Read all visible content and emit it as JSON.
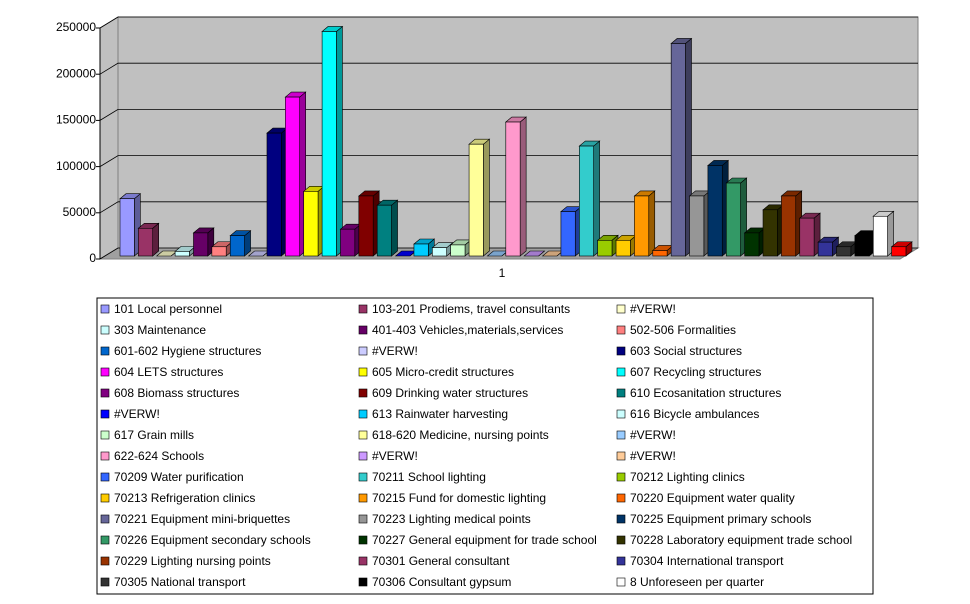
{
  "chart_data": {
    "type": "bar3d",
    "categories": [
      "1"
    ],
    "ylim": [
      0,
      250000
    ],
    "yticks": [
      0,
      50000,
      100000,
      150000,
      200000,
      250000
    ],
    "grid": true,
    "legend": "bottom",
    "series": [
      {
        "name": "101 Local personnel",
        "color": "#9999ff",
        "values": [
          62000
        ]
      },
      {
        "name": "103-201 Prodiems, travel consultants",
        "color": "#993366",
        "values": [
          30000
        ]
      },
      {
        "name": "#VERW!",
        "color": "#ffffcc",
        "values": [
          0
        ]
      },
      {
        "name": "303 Maintenance",
        "color": "#ccffff",
        "values": [
          5000
        ]
      },
      {
        "name": "401-403 Vehicles,materials,services",
        "color": "#660066",
        "values": [
          25000
        ]
      },
      {
        "name": "502-506 Formalities",
        "color": "#ff8080",
        "values": [
          10000
        ]
      },
      {
        "name": "601-602 Hygiene structures",
        "color": "#0066cc",
        "values": [
          22000
        ]
      },
      {
        "name": "#VERW!",
        "color": "#ccccff",
        "values": [
          0
        ]
      },
      {
        "name": "603 Social structures",
        "color": "#000080",
        "values": [
          133000
        ]
      },
      {
        "name": "604 LETS structures",
        "color": "#ff00ff",
        "values": [
          172000
        ]
      },
      {
        "name": "605 Micro-credit structures",
        "color": "#ffff00",
        "values": [
          70000
        ]
      },
      {
        "name": "607 Recycling structures",
        "color": "#00ffff",
        "values": [
          243000
        ]
      },
      {
        "name": "608 Biomass structures",
        "color": "#800080",
        "values": [
          29000
        ]
      },
      {
        "name": "609 Drinking water structures",
        "color": "#800000",
        "values": [
          65000
        ]
      },
      {
        "name": "610 Ecosanitation structures",
        "color": "#008080",
        "values": [
          55000
        ]
      },
      {
        "name": "#VERW!",
        "color": "#0000ff",
        "values": [
          0
        ]
      },
      {
        "name": "613 Rainwater harvesting",
        "color": "#00ccff",
        "values": [
          13000
        ]
      },
      {
        "name": "616 Bicycle ambulances",
        "color": "#ccffff",
        "values": [
          9000
        ]
      },
      {
        "name": "617 Grain mills",
        "color": "#ccffcc",
        "values": [
          12000
        ]
      },
      {
        "name": "618-620 Medicine, nursing points",
        "color": "#ffff99",
        "values": [
          121000
        ]
      },
      {
        "name": "#VERW!",
        "color": "#99ccff",
        "values": [
          0
        ]
      },
      {
        "name": "622-624 Schools",
        "color": "#ff99cc",
        "values": [
          145000
        ]
      },
      {
        "name": "#VERW!",
        "color": "#cc99ff",
        "values": [
          0
        ]
      },
      {
        "name": "#VERW!",
        "color": "#ffcc99",
        "values": [
          0
        ]
      },
      {
        "name": "70209 Water purification",
        "color": "#3366ff",
        "values": [
          48000
        ]
      },
      {
        "name": "70211 School lighting",
        "color": "#33cccc",
        "values": [
          119000
        ]
      },
      {
        "name": "70212 Lighting clinics",
        "color": "#99cc00",
        "values": [
          17000
        ]
      },
      {
        "name": "70213 Refrigeration clinics",
        "color": "#ffcc00",
        "values": [
          17000
        ]
      },
      {
        "name": "70215 Fund for domestic lighting",
        "color": "#ff9900",
        "values": [
          65000
        ]
      },
      {
        "name": "70220 Equipment water quality",
        "color": "#ff6600",
        "values": [
          6000
        ]
      },
      {
        "name": "70221 Equipment mini-briquettes",
        "color": "#666699",
        "values": [
          230000
        ]
      },
      {
        "name": "70223 Lighting medical points",
        "color": "#969696",
        "values": [
          65000
        ]
      },
      {
        "name": "70225 Equipment primary schools",
        "color": "#003366",
        "values": [
          98000
        ]
      },
      {
        "name": "70226 Equipment secondary schools",
        "color": "#339966",
        "values": [
          79000
        ]
      },
      {
        "name": "70227 General equipment for trade school",
        "color": "#003300",
        "values": [
          25000
        ]
      },
      {
        "name": "70228 Laboratory equipment trade school",
        "color": "#333300",
        "values": [
          50000
        ]
      },
      {
        "name": "70229 Lighting nursing points",
        "color": "#993300",
        "values": [
          65000
        ]
      },
      {
        "name": "70301 General consultant",
        "color": "#993366",
        "values": [
          41000
        ]
      },
      {
        "name": "70304 International transport",
        "color": "#333399",
        "values": [
          15000
        ]
      },
      {
        "name": "70305 National transport",
        "color": "#333333",
        "values": [
          10000
        ]
      },
      {
        "name": "70306 Consultant gypsum",
        "color": "#000000",
        "values": [
          22000
        ]
      },
      {
        "name": "8 Unforeseen per quarter",
        "color": "#ffffff",
        "values": [
          43000
        ]
      },
      {
        "name": null,
        "color": "#ff0000",
        "values": [
          10000
        ]
      }
    ]
  }
}
